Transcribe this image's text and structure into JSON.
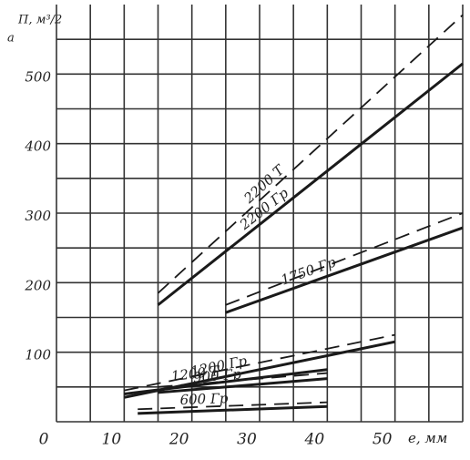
{
  "chart_data": {
    "type": "line",
    "panel_label": "a",
    "ylabel": "П, м³/2",
    "xlabel": "е, мм",
    "xlim": [
      0,
      60
    ],
    "ylim": [
      0,
      600
    ],
    "xticks": [
      0,
      10,
      20,
      30,
      40,
      50
    ],
    "yticks": [
      100,
      200,
      300,
      400,
      500
    ],
    "xgrid": [
      5,
      10,
      15,
      20,
      25,
      30,
      35,
      40,
      45,
      50,
      55,
      60
    ],
    "ygrid": [
      50,
      100,
      150,
      200,
      250,
      300,
      350,
      400,
      450,
      500,
      550
    ],
    "grid": true,
    "color": "#1a1a1a",
    "series": [
      {
        "name": "2200 Гр",
        "dashed": false,
        "x": [
          15,
          60
        ],
        "values": [
          168,
          515
        ]
      },
      {
        "name": "2200 T",
        "dashed": true,
        "x": [
          15,
          60
        ],
        "values": [
          185,
          585
        ]
      },
      {
        "name": "1750 Гр",
        "dashed": false,
        "x": [
          25,
          60
        ],
        "values": [
          157,
          279
        ]
      },
      {
        "dashed": true,
        "x": [
          25,
          60
        ],
        "values": [
          168,
          300
        ]
      },
      {
        "name": "1200 Гр",
        "dashed": false,
        "x": [
          10,
          50
        ],
        "values": [
          35,
          115
        ]
      },
      {
        "dashed": true,
        "x": [
          10,
          50
        ],
        "values": [
          45,
          125
        ]
      },
      {
        "name": "1200 T",
        "dashed": false,
        "x": [
          10,
          40
        ],
        "values": [
          40,
          75
        ]
      },
      {
        "name": "900 Гр",
        "dashed": false,
        "x": [
          15,
          40
        ],
        "values": [
          42,
          62
        ]
      },
      {
        "dashed": true,
        "x": [
          15,
          40
        ],
        "values": [
          50,
          70
        ]
      },
      {
        "name": "600 Гр",
        "dashed": false,
        "x": [
          12,
          40
        ],
        "values": [
          12,
          22
        ]
      },
      {
        "dashed": true,
        "x": [
          12,
          40
        ],
        "values": [
          18,
          28
        ]
      }
    ]
  }
}
